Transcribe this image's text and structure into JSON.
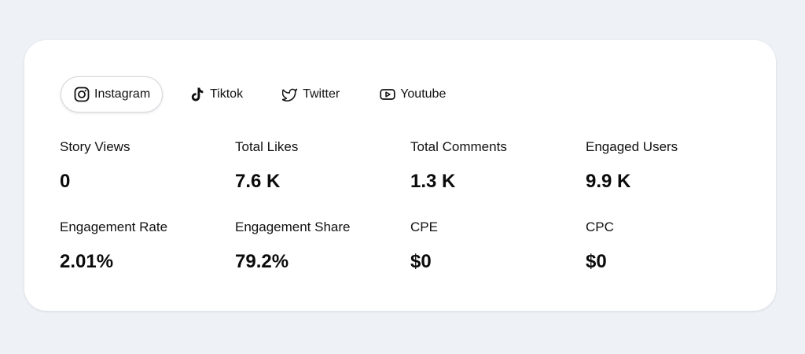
{
  "tabs": [
    {
      "label": "Instagram",
      "icon": "instagram-icon",
      "active": true
    },
    {
      "label": "Tiktok",
      "icon": "tiktok-icon",
      "active": false
    },
    {
      "label": "Twitter",
      "icon": "twitter-icon",
      "active": false
    },
    {
      "label": "Youtube",
      "icon": "youtube-icon",
      "active": false
    }
  ],
  "metrics": [
    {
      "label": "Story Views",
      "value": "0"
    },
    {
      "label": "Total Likes",
      "value": "7.6 K"
    },
    {
      "label": "Total Comments",
      "value": "1.3 K"
    },
    {
      "label": "Engaged Users",
      "value": "9.9 K"
    },
    {
      "label": "Engagement Rate",
      "value": "2.01%"
    },
    {
      "label": "Engagement Share",
      "value": "79.2%"
    },
    {
      "label": "CPE",
      "value": "$0"
    },
    {
      "label": "CPC",
      "value": "$0"
    }
  ],
  "colors": {
    "background": "#eef2f7",
    "card": "#ffffff",
    "text": "#0b0b0b",
    "tab_border": "#d6d9de"
  }
}
